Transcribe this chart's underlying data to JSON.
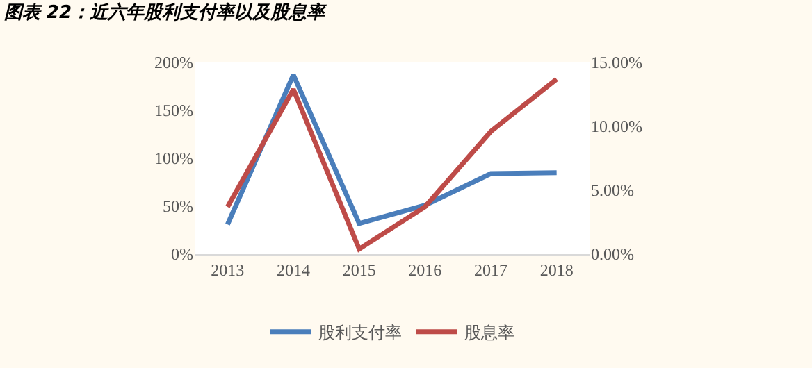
{
  "chart_data": {
    "type": "line",
    "title": "图表 22：近六年股利支付率以及股息率",
    "categories": [
      "2013",
      "2014",
      "2015",
      "2016",
      "2017",
      "2018"
    ],
    "series": [
      {
        "name": "股利支付率",
        "color": "#4a7ebb",
        "values": [
          31,
          187,
          32,
          51,
          84,
          85
        ]
      },
      {
        "name": "股息率",
        "color": "#be4b48",
        "axis": "y2",
        "values": [
          3.7,
          12.9,
          0.4,
          3.7,
          9.6,
          13.7
        ]
      }
    ],
    "ylim": [
      0,
      200
    ],
    "yticks": [
      {
        "value": 0,
        "label": "0%"
      },
      {
        "value": 50,
        "label": "50%"
      },
      {
        "value": 100,
        "label": "100%"
      },
      {
        "value": 150,
        "label": "150%"
      },
      {
        "value": 200,
        "label": "200%"
      }
    ],
    "y2lim": [
      0,
      15
    ],
    "y2ticks": [
      {
        "value": 0,
        "label": "0.00%"
      },
      {
        "value": 5,
        "label": "5.00%"
      },
      {
        "value": 10,
        "label": "10.00%"
      },
      {
        "value": 15,
        "label": "15.00%"
      }
    ],
    "legend": "bottom",
    "grid": false,
    "marker": "none",
    "line_style": "solid"
  }
}
